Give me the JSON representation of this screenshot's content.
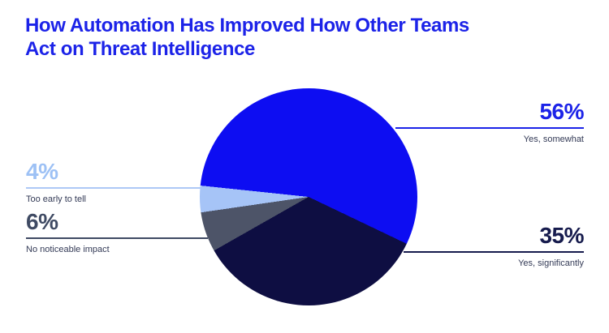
{
  "title_lines": [
    "How Automation Has Improved How Other Teams",
    "Act on Threat Intelligence"
  ],
  "chart_data": {
    "type": "pie",
    "title": "How Automation Has Improved How Other Teams Act on Threat Intelligence",
    "start_angle_deg": 276,
    "legend_position": "callouts-left-and-right",
    "slices": [
      {
        "label": "Yes, somewhat",
        "value": 56,
        "pct_label": "56%",
        "color": "#0d0df2"
      },
      {
        "label": "Yes, significantly",
        "value": 35,
        "pct_label": "35%",
        "color": "#0e0e42"
      },
      {
        "label": "No noticeable impact",
        "value": 6,
        "pct_label": "6%",
        "color": "#4d5468"
      },
      {
        "label": "Too early to tell",
        "value": 4,
        "pct_label": "4%",
        "color": "#a6c4f7"
      }
    ]
  },
  "colors": {
    "background": "#ffffff",
    "title": "#1c23e8",
    "pct_56": "#1c23e8",
    "line_56": "#1c23e8",
    "pct_35": "#161b4d",
    "line_35": "#161b4d",
    "pct_6": "#3f4a63",
    "line_6": "#3f4a63",
    "pct_4": "#9dc1f5",
    "line_4": "#adc8f6",
    "small_label": "#333a56"
  }
}
